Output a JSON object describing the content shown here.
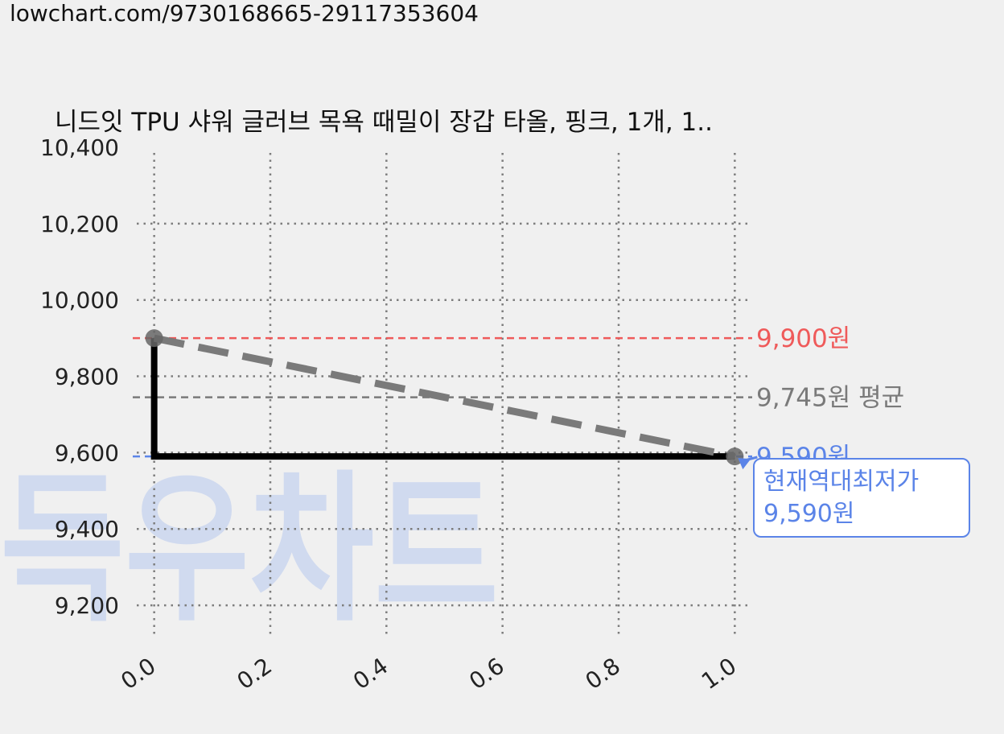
{
  "header": {
    "url": "lowchart.com/9730168665-29117353604"
  },
  "watermark": "득우차트",
  "chart_data": {
    "type": "line",
    "title": "니드잇 TPU 샤워 글러브 목욕 때밀이 장갑 타올, 핑크, 1개, 1..",
    "xlabel": "",
    "ylabel": "",
    "xlim": [
      -0.03,
      1.03
    ],
    "ylim": [
      9120,
      10400
    ],
    "x_ticks": [
      "0.0",
      "0.2",
      "0.4",
      "0.6",
      "0.8",
      "1.0"
    ],
    "y_ticks": [
      "9,200",
      "9,400",
      "9,600",
      "9,800",
      "10,000",
      "10,200",
      "10,400"
    ],
    "grid": true,
    "series": [
      {
        "style": "step",
        "color": "#000000",
        "points": [
          [
            0.0,
            9900
          ],
          [
            0.0,
            9590
          ],
          [
            1.0,
            9590
          ]
        ]
      },
      {
        "style": "dashed-trend",
        "color": "#7a7a7a",
        "points": [
          [
            0.0,
            9900
          ],
          [
            1.0,
            9590
          ]
        ]
      }
    ],
    "reference_lines": [
      {
        "value": 9900,
        "label": "9,900원",
        "color": "#ef5a5a"
      },
      {
        "value": 9745,
        "label": "9,745원 평균",
        "color": "#7a7a7a"
      },
      {
        "value": 9590,
        "label": "9,590원",
        "color": "#5b84e8"
      }
    ],
    "annotation": {
      "x": 1.0,
      "y": 9590,
      "lines": [
        "현재역대최저가",
        "9,590원"
      ],
      "color": "#5b84e8"
    }
  }
}
